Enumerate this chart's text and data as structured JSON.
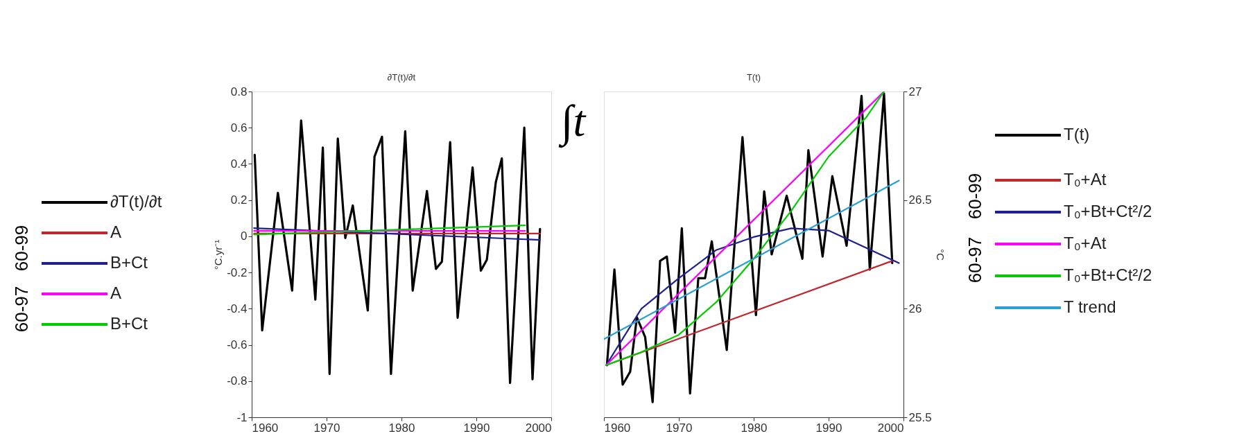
{
  "chart_data": [
    {
      "type": "line",
      "title": "∂T(t)/∂t",
      "ylabel": "°C.yr⁻¹",
      "legend": "left",
      "grid": false,
      "xlim": [
        1960,
        2000
      ],
      "xticks": [
        1960,
        1970,
        1980,
        1990,
        2000
      ],
      "ylim": [
        -1,
        0.8
      ],
      "yticks": [
        -1,
        -0.8,
        -0.6,
        -0.4,
        -0.2,
        0,
        0.2,
        0.4,
        0.6,
        0.8
      ],
      "annotations": [
        "60-99",
        "60-97"
      ],
      "series": [
        {
          "name": "∂T(t)/∂t",
          "color": "#000000",
          "x": [
            1960.4,
            1961.4,
            1963.5,
            1965.4,
            1966.6,
            1968.5,
            1969.5,
            1970.4,
            1971.5,
            1972.5,
            1973.5,
            1975.5,
            1976.4,
            1977.4,
            1978.6,
            1980.5,
            1981.5,
            1983.4,
            1984.6,
            1985.4,
            1986.5,
            1987.5,
            1989.5,
            1990.6,
            1991.4,
            1992.6,
            1993.4,
            1994.5,
            1996.4,
            1997.5,
            1998.5
          ],
          "values": [
            0.45,
            -0.52,
            0.24,
            -0.3,
            0.64,
            -0.35,
            0.49,
            -0.76,
            0.54,
            -0.01,
            0.17,
            -0.41,
            0.44,
            0.55,
            -0.76,
            0.58,
            -0.3,
            0.25,
            -0.18,
            -0.14,
            0.52,
            -0.45,
            0.38,
            -0.19,
            -0.13,
            0.3,
            0.43,
            -0.81,
            0.6,
            -0.79,
            0.04
          ]
        },
        {
          "name": "A",
          "color": "#c0282d",
          "x": [
            1960.3,
            1998.5
          ],
          "values": [
            0.015,
            0.015
          ]
        },
        {
          "name": "B+Ct",
          "color": "#1f1f8f",
          "x": [
            1960.3,
            1998.5
          ],
          "values": [
            0.045,
            -0.02
          ]
        },
        {
          "name": "A",
          "color": "#ff00ff",
          "x": [
            1960.3,
            1996.5
          ],
          "values": [
            0.03,
            0.03
          ]
        },
        {
          "name": "B+Ct",
          "color": "#00cc00",
          "x": [
            1960.3,
            1996.5
          ],
          "values": [
            0.01,
            0.06
          ]
        }
      ]
    },
    {
      "type": "line",
      "title": "T(t)",
      "y2label": "°C",
      "legend": "right",
      "grid": false,
      "xlim": [
        1960,
        2000
      ],
      "xticks": [
        1960,
        1970,
        1980,
        1990,
        2000
      ],
      "y2lim": [
        25.5,
        27
      ],
      "y2ticks": [
        25.5,
        26,
        26.5,
        27
      ],
      "annotations": [
        "60-99",
        "60-97",
        "∫t"
      ],
      "series": [
        {
          "name": "T(t)",
          "color": "#000000",
          "axis": "y2",
          "x": [
            1960.4,
            1961.4,
            1962.5,
            1963.5,
            1964.4,
            1965.5,
            1966.5,
            1967.5,
            1968.4,
            1969.5,
            1970.4,
            1971.5,
            1972.6,
            1973.5,
            1974.4,
            1976.4,
            1978.5,
            1980.3,
            1981.4,
            1982.4,
            1984.4,
            1986.5,
            1987.3,
            1989.2,
            1990.5,
            1992.4,
            1994.4,
            1995.5,
            1997.4,
            1998.5
          ],
          "values": [
            25.74,
            26.18,
            25.65,
            25.71,
            25.96,
            25.87,
            25.57,
            26.22,
            26.24,
            25.89,
            26.37,
            25.61,
            26.14,
            26.14,
            26.31,
            25.81,
            26.79,
            25.97,
            26.54,
            26.25,
            26.52,
            26.23,
            26.73,
            26.24,
            26.61,
            26.29,
            26.98,
            26.18,
            26.99,
            26.21
          ]
        },
        {
          "name": "T₀+At",
          "color": "#c0282d",
          "axis": "y2",
          "x": [
            1960.3,
            1998.5
          ],
          "values": [
            25.74,
            26.22
          ]
        },
        {
          "name": "T₀+Bt+Ct²/2",
          "color": "#1f1f8f",
          "axis": "y2",
          "x": [
            1960.3,
            1965,
            1970,
            1975,
            1980,
            1985,
            1990,
            1995,
            1999.4
          ],
          "values": [
            25.74,
            26.0,
            26.14,
            26.27,
            26.33,
            26.37,
            26.36,
            26.28,
            26.21
          ]
        },
        {
          "name": "T₀+At",
          "color": "#ff00ff",
          "axis": "y2",
          "x": [
            1960.3,
            1997.4
          ],
          "values": [
            25.74,
            27.0
          ]
        },
        {
          "name": "T₀+Bt+Ct²/2",
          "color": "#00cc00",
          "axis": "y2",
          "x": [
            1960.3,
            1965,
            1970,
            1975,
            1980,
            1985,
            1990,
            1995,
            1997.4
          ],
          "values": [
            25.74,
            25.8,
            25.88,
            26.03,
            26.23,
            26.45,
            26.7,
            26.88,
            27.0
          ]
        },
        {
          "name": "T trend",
          "color": "#2a9fd0",
          "axis": "y2",
          "x": [
            1960,
            1999.4
          ],
          "values": [
            25.86,
            26.59
          ]
        }
      ]
    }
  ]
}
